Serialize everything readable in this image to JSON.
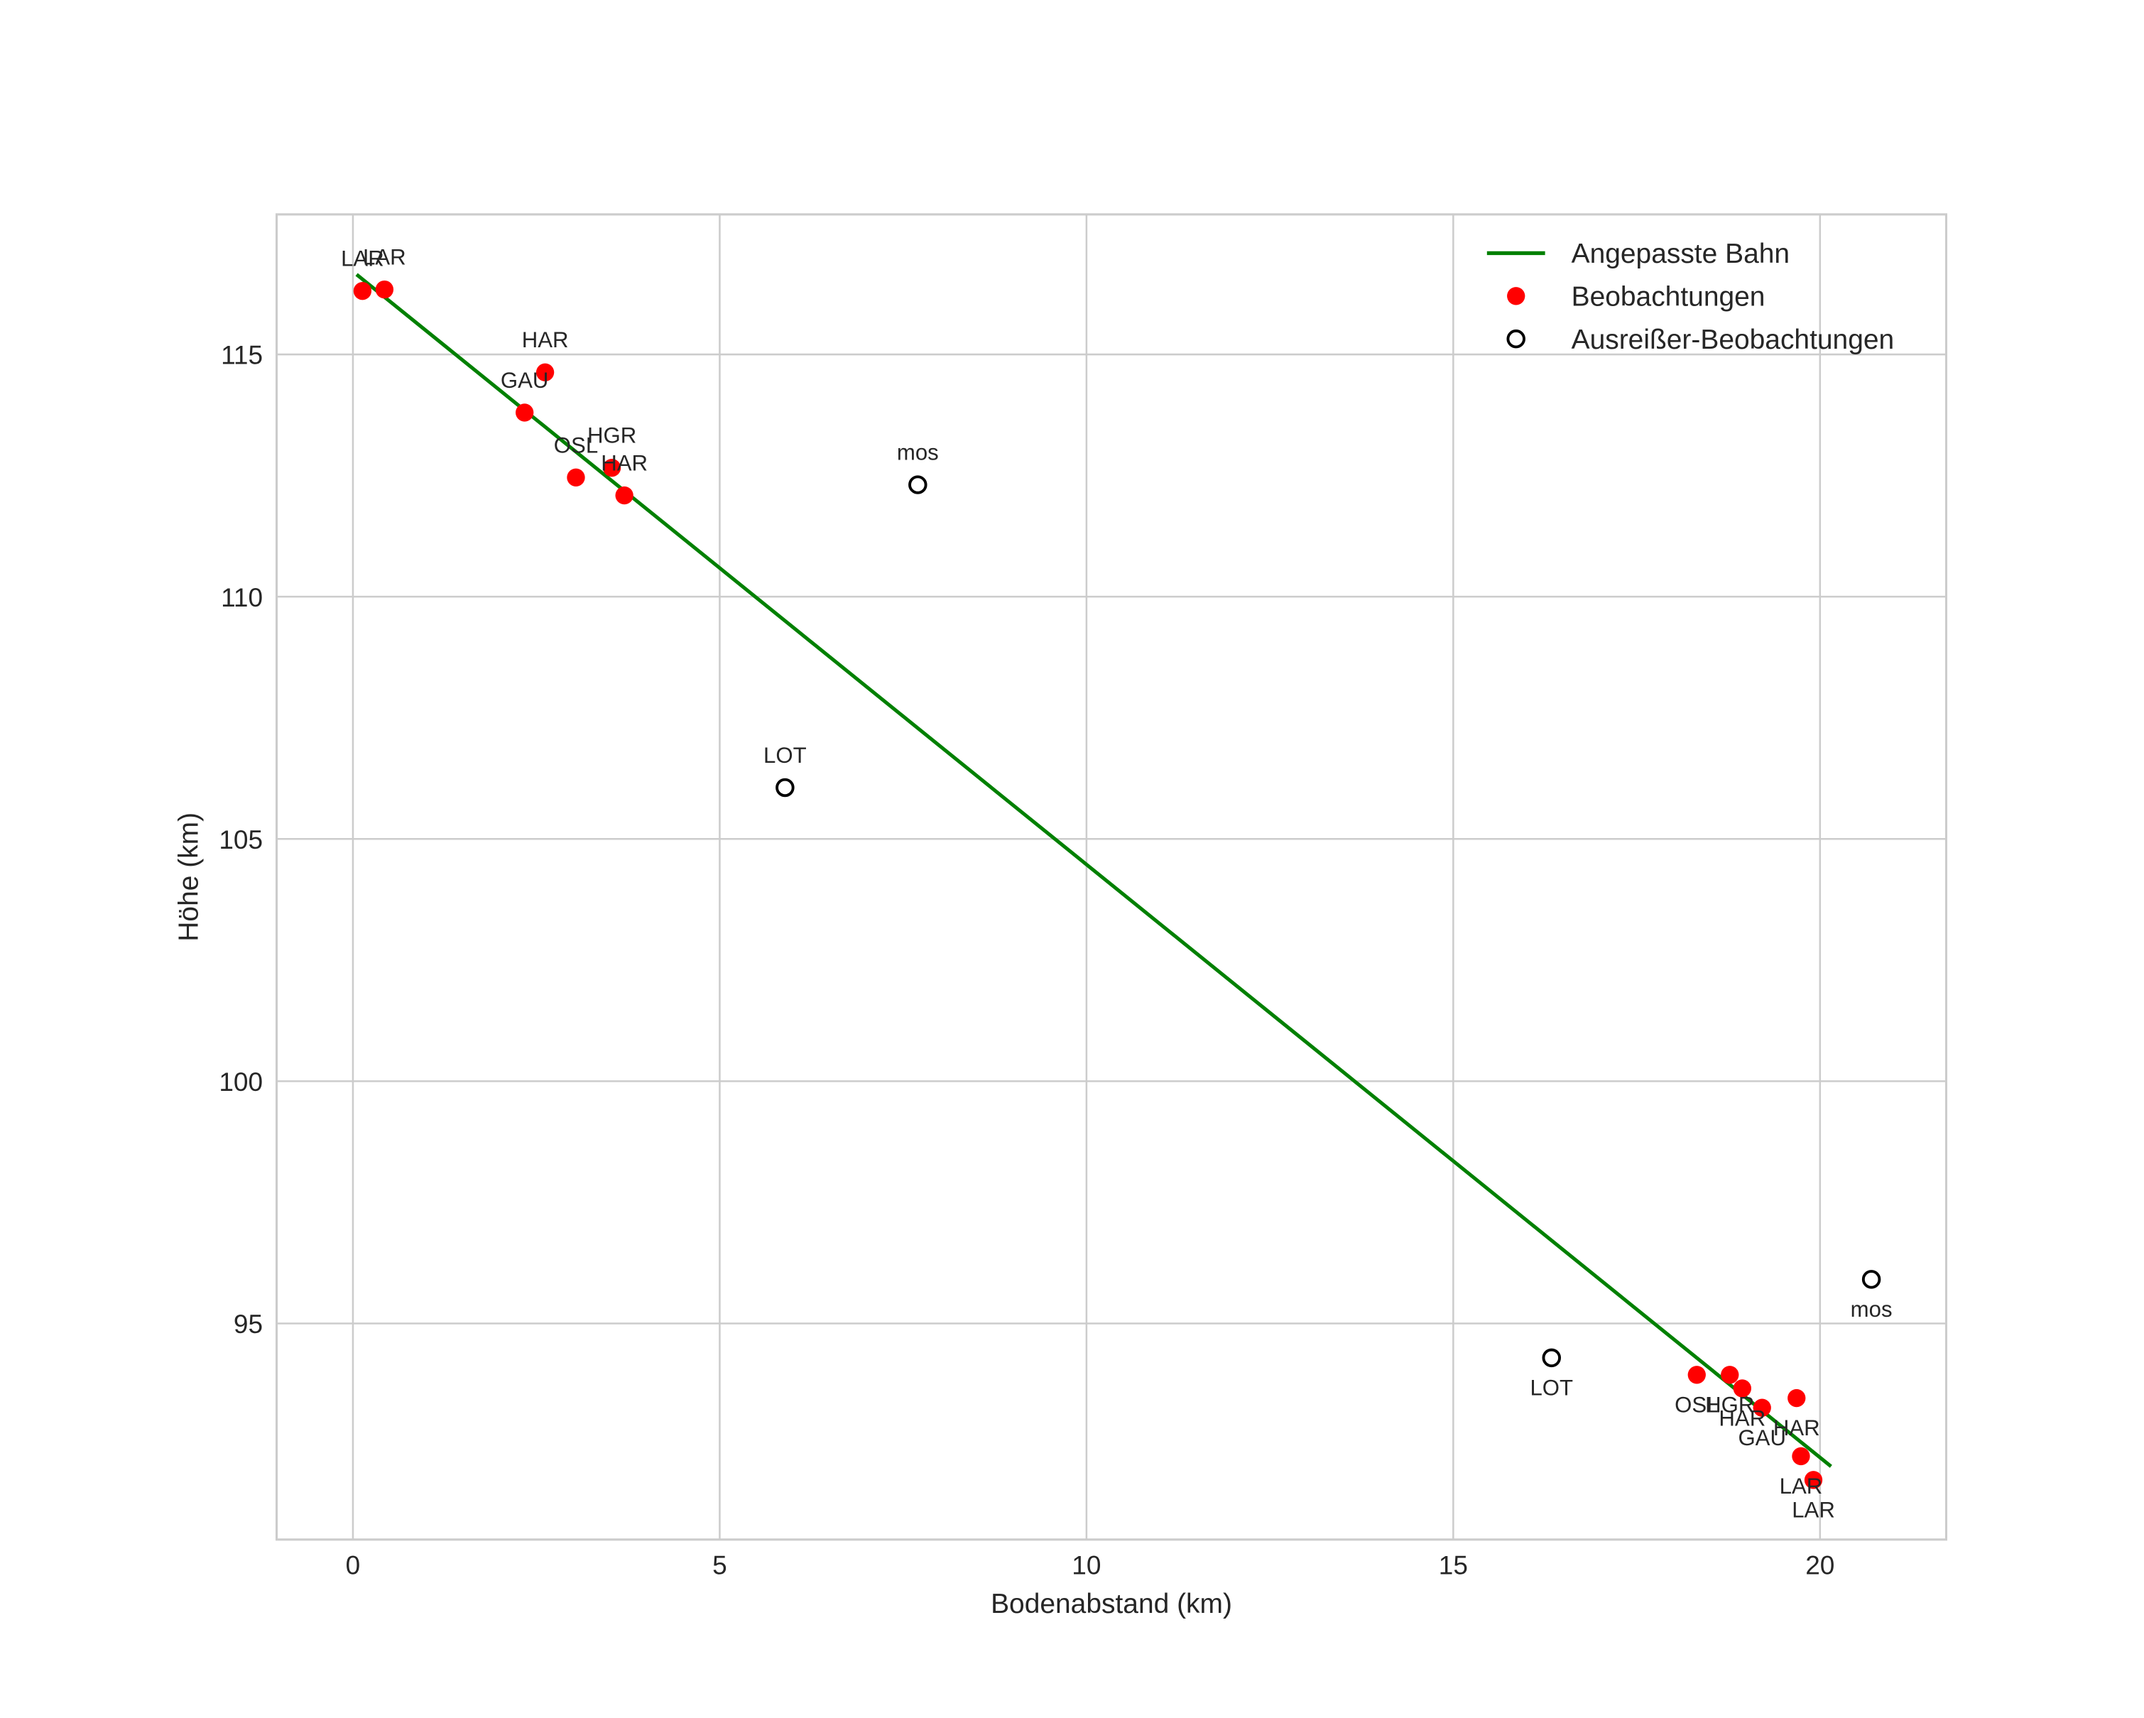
{
  "chart_data": {
    "type": "scatter",
    "title": "",
    "xlabel": "Bodenabstand (km)",
    "ylabel": "Höhe (km)",
    "xlim": [
      -1.04,
      21.72
    ],
    "ylim": [
      90.54,
      117.89
    ],
    "xticks": [
      0,
      5,
      10,
      15,
      20
    ],
    "yticks": [
      95,
      100,
      105,
      110,
      115
    ],
    "grid": true,
    "legend_position": "upper right",
    "legend": [
      {
        "label": "Angepasste Bahn",
        "type": "line",
        "color": "#008000"
      },
      {
        "label": "Beobachtungen",
        "type": "marker-filled",
        "color": "#ff0000"
      },
      {
        "label": "Ausreißer-Beobachtungen",
        "type": "marker-open",
        "color": "#000000"
      }
    ],
    "series": [
      {
        "name": "Angepasste Bahn",
        "type": "line",
        "color": "#008000",
        "x": [
          0.05,
          20.15
        ],
        "y": [
          116.65,
          92.05
        ]
      },
      {
        "name": "Beobachtungen",
        "type": "scatter",
        "color": "#ff0000",
        "points": [
          {
            "x": 0.13,
            "y": 116.31,
            "label": "LAR",
            "label_pos": "above"
          },
          {
            "x": 0.43,
            "y": 116.34,
            "label": "LAR",
            "label_pos": "above"
          },
          {
            "x": 2.62,
            "y": 114.63,
            "label": "HAR",
            "label_pos": "above"
          },
          {
            "x": 2.34,
            "y": 113.8,
            "label": "GAU",
            "label_pos": "above"
          },
          {
            "x": 3.04,
            "y": 112.46,
            "label": "OSL",
            "label_pos": "above"
          },
          {
            "x": 3.53,
            "y": 112.66,
            "label": "HGR",
            "label_pos": "above"
          },
          {
            "x": 3.7,
            "y": 112.09,
            "label": "HAR",
            "label_pos": "above"
          },
          {
            "x": 18.32,
            "y": 93.94,
            "label": "OSL",
            "label_pos": "below"
          },
          {
            "x": 18.77,
            "y": 93.94,
            "label": "HGR",
            "label_pos": "below"
          },
          {
            "x": 18.94,
            "y": 93.66,
            "label": "HAR",
            "label_pos": "below"
          },
          {
            "x": 19.21,
            "y": 93.26,
            "label": "GAU",
            "label_pos": "below"
          },
          {
            "x": 19.68,
            "y": 93.46,
            "label": "HAR",
            "label_pos": "below"
          },
          {
            "x": 19.74,
            "y": 92.26,
            "label": "LAR",
            "label_pos": "below"
          },
          {
            "x": 19.91,
            "y": 91.77,
            "label": "LAR",
            "label_pos": "below"
          }
        ]
      },
      {
        "name": "Ausreißer-Beobachtungen",
        "type": "scatter",
        "color": "#000000",
        "marker": "open-circle",
        "points": [
          {
            "x": 7.7,
            "y": 112.31,
            "label": "mos",
            "label_pos": "above"
          },
          {
            "x": 5.89,
            "y": 106.06,
            "label": "LOT",
            "label_pos": "above"
          },
          {
            "x": 16.34,
            "y": 94.29,
            "label": "LOT",
            "label_pos": "below"
          },
          {
            "x": 20.7,
            "y": 95.91,
            "label": "mos",
            "label_pos": "below"
          }
        ]
      }
    ]
  }
}
